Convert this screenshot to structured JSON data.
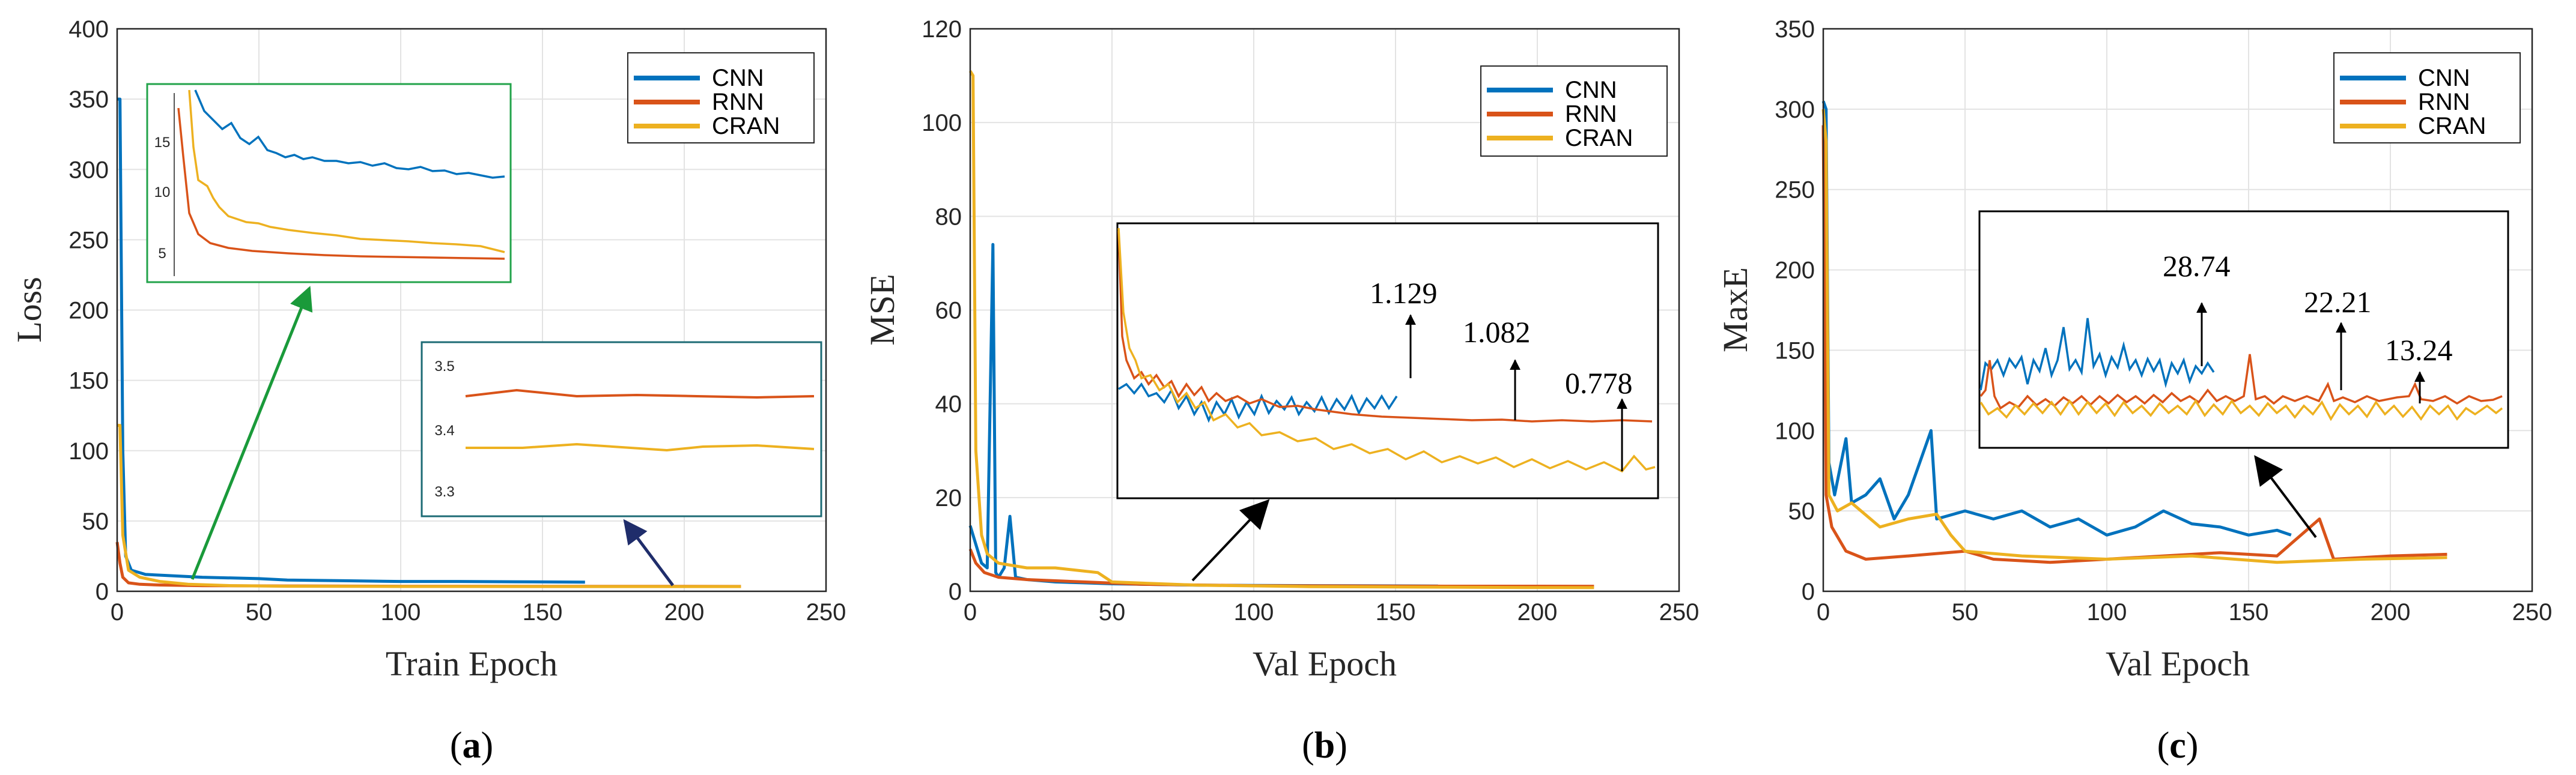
{
  "colors": {
    "CNN": "#0072BD",
    "RNN": "#D95319",
    "CRAN": "#EDB120",
    "green_arrow": "#1a9a3a",
    "navy_arrow": "#1f2d6b",
    "zoom_green": "#22a34a",
    "zoom_teal": "#1d6b75"
  },
  "chart_data": [
    {
      "id": "a",
      "type": "line",
      "subfigure_label": "(a)",
      "sub_letter": "a",
      "xlabel": "Train Epoch",
      "ylabel": "Loss",
      "xlim": [
        0,
        250
      ],
      "ylim": [
        0,
        400
      ],
      "xticks": [
        0,
        50,
        100,
        150,
        200,
        250
      ],
      "yticks": [
        0,
        50,
        100,
        150,
        200,
        250,
        300,
        350,
        400
      ],
      "legend": [
        "CNN",
        "RNN",
        "CRAN"
      ],
      "legend_position": "top-right",
      "series": [
        {
          "name": "CNN",
          "points": [
            [
              0,
              350
            ],
            [
              1,
              350
            ],
            [
              2,
              100
            ],
            [
              3,
              25
            ],
            [
              5,
              15
            ],
            [
              10,
              12
            ],
            [
              20,
              11
            ],
            [
              30,
              10
            ],
            [
              50,
              9
            ],
            [
              60,
              8
            ],
            [
              80,
              7.5
            ],
            [
              100,
              7
            ],
            [
              120,
              7
            ],
            [
              140,
              6.8
            ],
            [
              165,
              6.5
            ]
          ]
        },
        {
          "name": "RNN",
          "points": [
            [
              0,
              35
            ],
            [
              1,
              20
            ],
            [
              2,
              10
            ],
            [
              4,
              6
            ],
            [
              8,
              5
            ],
            [
              15,
              4.5
            ],
            [
              30,
              4
            ],
            [
              60,
              3.8
            ],
            [
              100,
              3.6
            ],
            [
              150,
              3.5
            ],
            [
              200,
              3.5
            ],
            [
              220,
              3.45
            ]
          ]
        },
        {
          "name": "CRAN",
          "points": [
            [
              0,
              118
            ],
            [
              1,
              118
            ],
            [
              2,
              40
            ],
            [
              4,
              15
            ],
            [
              8,
              10
            ],
            [
              15,
              7
            ],
            [
              25,
              5
            ],
            [
              40,
              4
            ],
            [
              60,
              3.6
            ],
            [
              100,
              3.4
            ],
            [
              150,
              3.38
            ],
            [
              200,
              3.37
            ],
            [
              220,
              3.36
            ]
          ]
        }
      ],
      "zoom_insets": [
        {
          "region": "early epochs",
          "tick_labels": [
            "15",
            "10",
            "5"
          ]
        },
        {
          "region": "late epochs",
          "tick_labels": [
            "3.5",
            "3.4",
            "3.3"
          ]
        }
      ]
    },
    {
      "id": "b",
      "type": "line",
      "subfigure_label": "(b)",
      "sub_letter": "b",
      "xlabel": "Val Epoch",
      "ylabel": "MSE",
      "xlim": [
        0,
        250
      ],
      "ylim": [
        0,
        120
      ],
      "xticks": [
        0,
        50,
        100,
        150,
        200,
        250
      ],
      "yticks": [
        0,
        20,
        40,
        60,
        80,
        100,
        120
      ],
      "legend": [
        "CNN",
        "RNN",
        "CRAN"
      ],
      "legend_position": "top-right",
      "series": [
        {
          "name": "CNN",
          "points": [
            [
              0,
              14
            ],
            [
              2,
              10
            ],
            [
              4,
              6
            ],
            [
              6,
              5
            ],
            [
              8,
              74
            ],
            [
              9,
              4
            ],
            [
              10,
              3
            ],
            [
              12,
              5
            ],
            [
              14,
              16
            ],
            [
              16,
              3
            ],
            [
              20,
              2.5
            ],
            [
              30,
              2
            ],
            [
              40,
              1.8
            ],
            [
              50,
              1.6
            ],
            [
              80,
              1.3
            ],
            [
              120,
              1.2
            ],
            [
              165,
              1.129
            ]
          ]
        },
        {
          "name": "RNN",
          "points": [
            [
              0,
              9
            ],
            [
              2,
              6
            ],
            [
              5,
              4
            ],
            [
              10,
              3
            ],
            [
              20,
              2.5
            ],
            [
              40,
              2
            ],
            [
              60,
              1.5
            ],
            [
              100,
              1.2
            ],
            [
              150,
              1.1
            ],
            [
              200,
              1.09
            ],
            [
              220,
              1.082
            ]
          ]
        },
        {
          "name": "CRAN",
          "points": [
            [
              0,
              111
            ],
            [
              1,
              110
            ],
            [
              2,
              30
            ],
            [
              4,
              12
            ],
            [
              6,
              8
            ],
            [
              10,
              6
            ],
            [
              20,
              5
            ],
            [
              30,
              5
            ],
            [
              45,
              4
            ],
            [
              50,
              2
            ],
            [
              80,
              1.3
            ],
            [
              120,
              1
            ],
            [
              160,
              0.9
            ],
            [
              200,
              0.8
            ],
            [
              220,
              0.778
            ]
          ]
        }
      ],
      "annotations": [
        {
          "text": "1.129",
          "series": "CNN"
        },
        {
          "text": "1.082",
          "series": "RNN"
        },
        {
          "text": "0.778",
          "series": "CRAN"
        }
      ]
    },
    {
      "id": "c",
      "type": "line",
      "subfigure_label": "(c)",
      "sub_letter": "c",
      "xlabel": "Val Epoch",
      "ylabel": "MaxE",
      "xlim": [
        0,
        250
      ],
      "ylim": [
        0,
        350
      ],
      "xticks": [
        0,
        50,
        100,
        150,
        200,
        250
      ],
      "yticks": [
        0,
        50,
        100,
        150,
        200,
        250,
        300,
        350
      ],
      "legend": [
        "CNN",
        "RNN",
        "CRAN"
      ],
      "legend_position": "top-right",
      "series": [
        {
          "name": "CNN",
          "points": [
            [
              0,
              305
            ],
            [
              1,
              300
            ],
            [
              2,
              80
            ],
            [
              4,
              60
            ],
            [
              8,
              95
            ],
            [
              10,
              55
            ],
            [
              15,
              60
            ],
            [
              20,
              70
            ],
            [
              25,
              45
            ],
            [
              30,
              60
            ],
            [
              38,
              100
            ],
            [
              40,
              45
            ],
            [
              50,
              50
            ],
            [
              60,
              45
            ],
            [
              70,
              50
            ],
            [
              80,
              40
            ],
            [
              90,
              45
            ],
            [
              100,
              35
            ],
            [
              110,
              40
            ],
            [
              120,
              50
            ],
            [
              130,
              42
            ],
            [
              140,
              40
            ],
            [
              150,
              35
            ],
            [
              160,
              38
            ],
            [
              165,
              35
            ]
          ]
        },
        {
          "name": "RNN",
          "points": [
            [
              0,
              290
            ],
            [
              1,
              60
            ],
            [
              3,
              40
            ],
            [
              8,
              25
            ],
            [
              15,
              20
            ],
            [
              30,
              22
            ],
            [
              50,
              25
            ],
            [
              60,
              20
            ],
            [
              80,
              18
            ],
            [
              100,
              20
            ],
            [
              120,
              22
            ],
            [
              140,
              24
            ],
            [
              160,
              22
            ],
            [
              175,
              45
            ],
            [
              180,
              20
            ],
            [
              200,
              22
            ],
            [
              220,
              23
            ]
          ]
        },
        {
          "name": "CRAN",
          "points": [
            [
              0,
              300
            ],
            [
              1,
              280
            ],
            [
              2,
              60
            ],
            [
              5,
              50
            ],
            [
              10,
              55
            ],
            [
              20,
              40
            ],
            [
              30,
              45
            ],
            [
              40,
              48
            ],
            [
              45,
              35
            ],
            [
              50,
              25
            ],
            [
              70,
              22
            ],
            [
              100,
              20
            ],
            [
              130,
              22
            ],
            [
              160,
              18
            ],
            [
              190,
              20
            ],
            [
              220,
              21
            ]
          ]
        }
      ],
      "annotations": [
        {
          "text": "28.74",
          "series": "CNN"
        },
        {
          "text": "22.21",
          "series": "RNN"
        },
        {
          "text": "13.24",
          "series": "CRAN"
        }
      ]
    }
  ]
}
